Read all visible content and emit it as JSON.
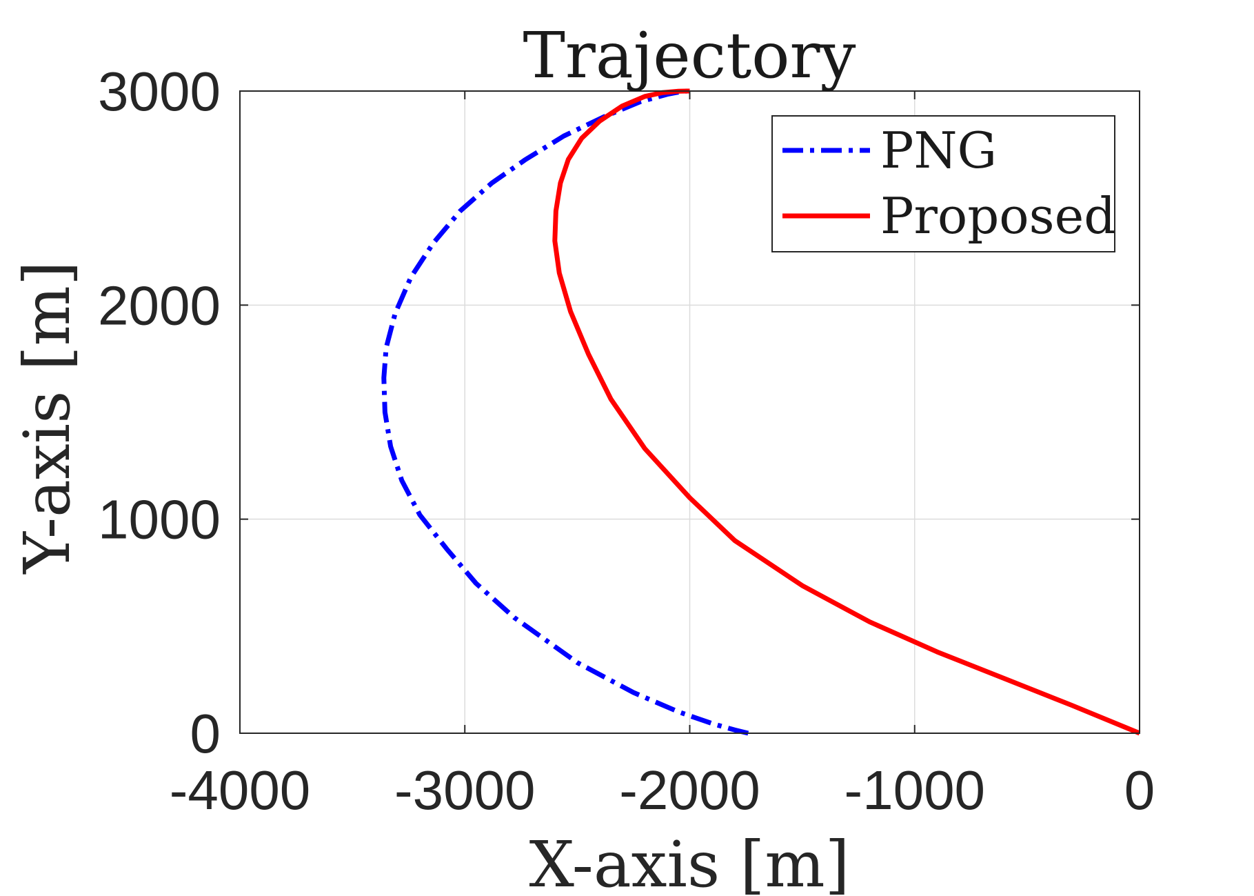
{
  "chart_data": {
    "type": "line",
    "title": "Trajectory",
    "xlabel": "X-axis [m]",
    "ylabel": "Y-axis [m]",
    "xlim": [
      -4000,
      0
    ],
    "ylim": [
      0,
      3000
    ],
    "xticks": [
      -4000,
      -3000,
      -2000,
      -1000,
      0
    ],
    "yticks": [
      0,
      1000,
      2000,
      3000
    ],
    "xtick_labels": [
      "-4000",
      "-3000",
      "-2000",
      "-1000",
      "0"
    ],
    "ytick_labels": [
      "0",
      "1000",
      "2000",
      "3000"
    ],
    "grid": true,
    "legend_position": "top-right",
    "series": [
      {
        "name": "PNG",
        "color": "#0000ff",
        "style": "dash-dot",
        "x": [
          -1740,
          -1800,
          -1900,
          -2050,
          -2250,
          -2500,
          -2780,
          -2950,
          -3080,
          -3200,
          -3280,
          -3330,
          -3355,
          -3360,
          -3350,
          -3310,
          -3240,
          -3140,
          -3020,
          -2880,
          -2730,
          -2560,
          -2380,
          -2220,
          -2100,
          -2060,
          -2030,
          -2010
        ],
        "y": [
          0,
          15,
          45,
          100,
          190,
          330,
          540,
          700,
          860,
          1020,
          1180,
          1340,
          1500,
          1660,
          1800,
          1960,
          2130,
          2290,
          2440,
          2570,
          2680,
          2790,
          2880,
          2950,
          2985,
          2993,
          2998,
          3000
        ]
      },
      {
        "name": "Proposed",
        "color": "#ff0000",
        "style": "solid",
        "x": [
          0,
          -300,
          -600,
          -900,
          -1200,
          -1500,
          -1800,
          -2000,
          -2200,
          -2350,
          -2450,
          -2530,
          -2580,
          -2600,
          -2595,
          -2575,
          -2540,
          -2480,
          -2400,
          -2300,
          -2200,
          -2120,
          -2050,
          -2010,
          -2000
        ],
        "y": [
          0,
          130,
          255,
          380,
          520,
          690,
          900,
          1100,
          1330,
          1560,
          1770,
          1970,
          2150,
          2300,
          2440,
          2570,
          2680,
          2780,
          2860,
          2930,
          2975,
          2993,
          2999,
          3000,
          3000
        ]
      }
    ]
  }
}
